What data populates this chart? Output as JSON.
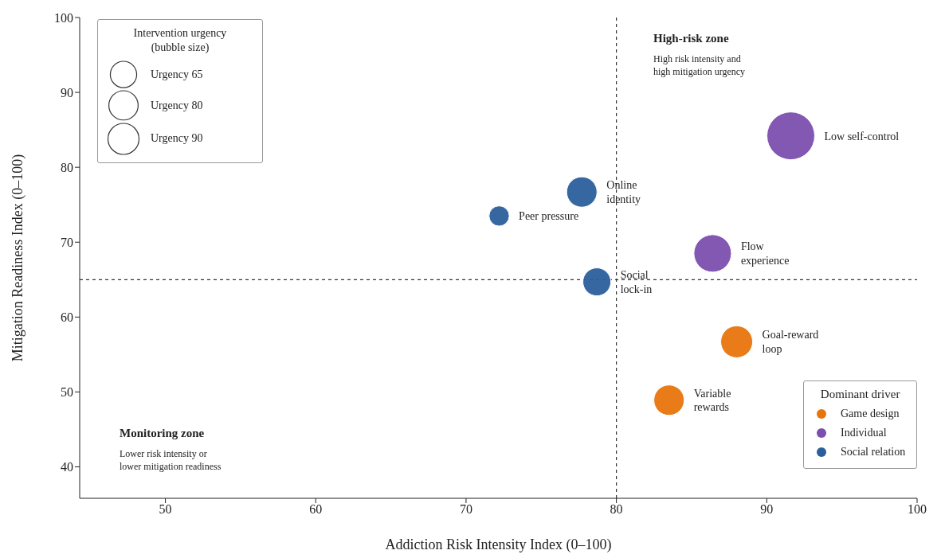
{
  "chart_data": {
    "type": "bubble",
    "xlabel": "Addiction Risk Intensity Index (0–100)",
    "ylabel": "Mitigation Readiness Index (0–100)",
    "xlim": [
      44.3,
      100
    ],
    "xticks": [
      50,
      60,
      70,
      80,
      90,
      100
    ],
    "ylim": [
      35.8,
      100
    ],
    "yticks": [
      40,
      50,
      60,
      70,
      80,
      90,
      100
    ],
    "grid": false,
    "legend": "bottom right",
    "legend_title": "Dominant driver",
    "size_legend": [
      {
        "value": 65,
        "label": "Urgency 65"
      },
      {
        "value": 80,
        "label": "Urgency 80"
      },
      {
        "value": 90,
        "label": "Urgency 90"
      }
    ],
    "series": [
      {
        "name": "Game design",
        "color": "#e8740c",
        "x": [
          88.0,
          83.5
        ],
        "values": [
          56.7,
          48.9
        ],
        "sizes": [
          95,
          86
        ]
      },
      {
        "name": "Individual",
        "color": "#7b4fae",
        "x": [
          91.6,
          86.4
        ],
        "values": [
          84.2,
          68.5
        ],
        "sizes": [
          213,
          131
        ]
      },
      {
        "name": "Social relation",
        "color": "#2b5f9b",
        "x": [
          77.7,
          72.2,
          78.7
        ],
        "values": [
          76.7,
          73.5,
          64.7
        ],
        "sizes": [
          86,
          38,
          73
        ]
      }
    ],
    "ref_lines": [
      {
        "axis": "x",
        "value": 80,
        "color": "#333333",
        "line_style": "dashed"
      },
      {
        "axis": "y",
        "value": 65,
        "color": "#333333",
        "line_style": "dashed"
      }
    ],
    "annotations": [
      "High-risk zone",
      "High risk intensity and\nhigh mitigation urgency",
      "Monitoring zone",
      "Lower risk intensity or\nlower mitigation readiness",
      "Intervention urgency\n(bubble size)",
      {
        "text": "Goal-reward\nloop",
        "x": 88.0,
        "y": 56.7
      },
      {
        "text": "Variable\nrewards",
        "x": 83.5,
        "y": 48.9
      },
      {
        "text": "Low self-control",
        "x": 91.6,
        "y": 84.2
      },
      {
        "text": "Flow\nexperience",
        "x": 86.4,
        "y": 68.5
      },
      {
        "text": "Online\nidentity",
        "x": 77.7,
        "y": 76.7
      },
      {
        "text": "Peer pressure",
        "x": 72.2,
        "y": 73.5
      },
      {
        "text": "Social\nlock-in",
        "x": 78.7,
        "y": 64.7
      }
    ]
  }
}
